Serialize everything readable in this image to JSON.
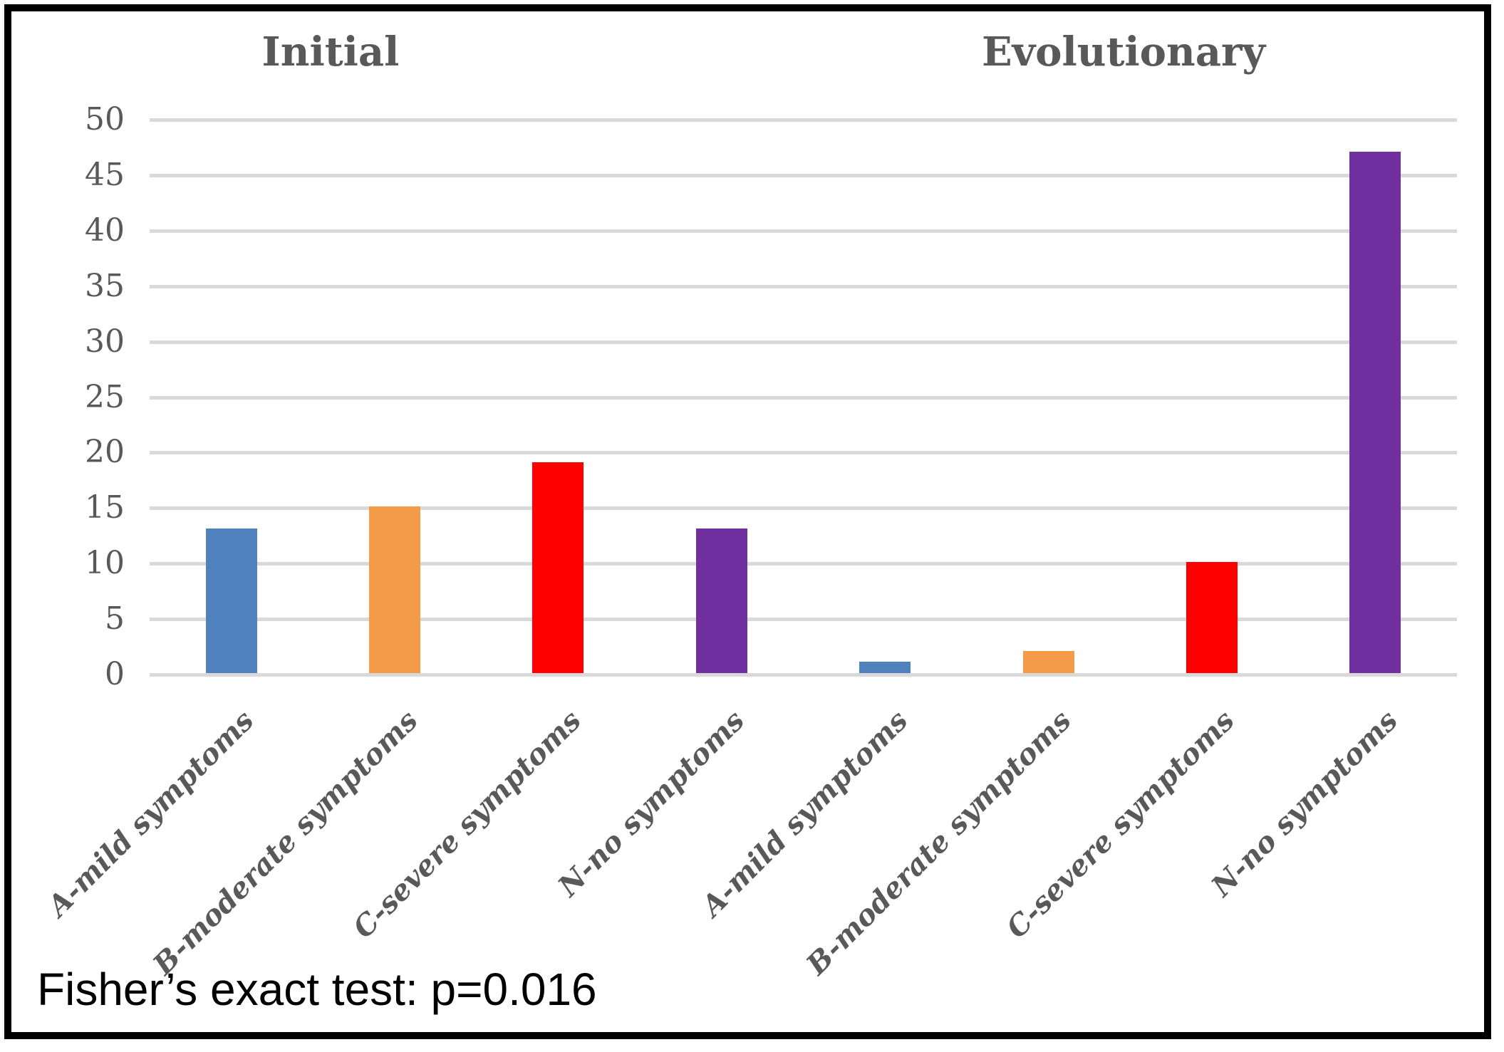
{
  "chart_data": {
    "type": "bar",
    "group_titles": [
      "Initial",
      "Evolutionary"
    ],
    "groups": [
      {
        "name": "Initial",
        "categories": [
          "A-mild symptoms",
          "B-moderate symptoms",
          "C-severe symptoms",
          "N-no symptoms"
        ],
        "values": [
          13,
          15,
          19,
          13
        ]
      },
      {
        "name": "Evolutionary",
        "categories": [
          "A-mild symptoms",
          "B-moderate symptoms",
          "C-severe symptoms",
          "N-no symptoms"
        ],
        "values": [
          1,
          2,
          10,
          47
        ]
      }
    ],
    "bar_colors_per_category": [
      "#4F81BD",
      "#F49B4A",
      "#FF0000",
      "#7030A0"
    ],
    "yticks": [
      0,
      5,
      10,
      15,
      20,
      25,
      30,
      35,
      40,
      45,
      50
    ],
    "ylim": [
      0,
      50
    ],
    "grid": true,
    "gridline_color": "#D9D9D9",
    "axis_text_color": "#595959",
    "legend": false,
    "caption": "Fisher’s exact test: p=0.016"
  }
}
